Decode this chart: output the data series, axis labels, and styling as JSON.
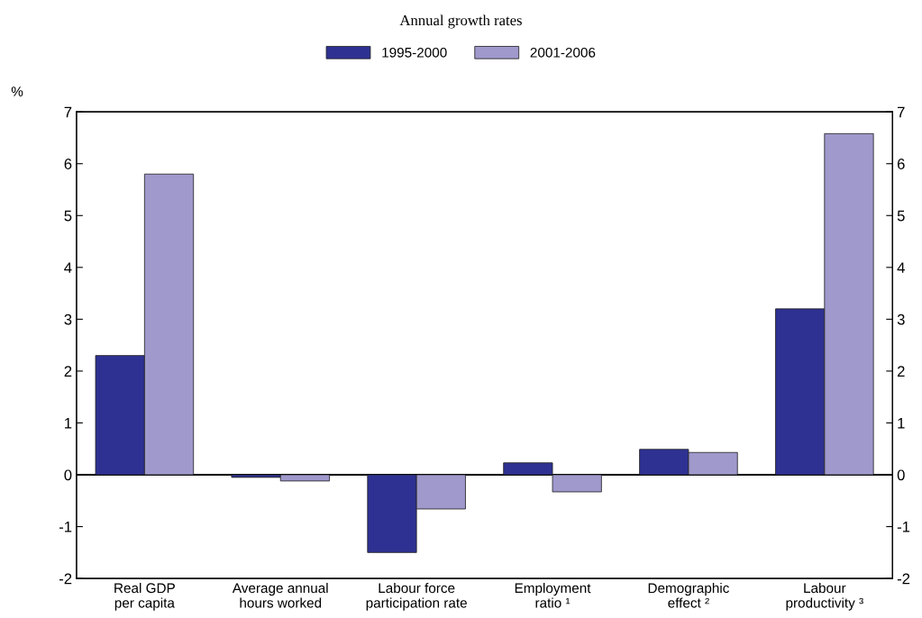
{
  "chart_data": {
    "type": "bar",
    "title": "Annual growth rates",
    "ylabel": "%",
    "categories": [
      "Real GDP\nper capita",
      "Average annual\nhours worked",
      "Labour force\nparticipation rate",
      "Employment\nratio ¹",
      "Demographic\neffect ²",
      "Labour\nproductivity ³"
    ],
    "series": [
      {
        "name": "1995-2000",
        "color": "#2e3192",
        "values": [
          2.3,
          -0.05,
          -1.5,
          0.23,
          0.49,
          3.2
        ]
      },
      {
        "name": "2001-2006",
        "color": "#9f99cc",
        "values": [
          5.8,
          -0.12,
          -0.66,
          -0.33,
          0.43,
          6.58
        ]
      }
    ],
    "ylim": [
      -2,
      7
    ],
    "yticks": [
      -2,
      -1,
      0,
      1,
      2,
      3,
      4,
      5,
      6,
      7
    ],
    "y2lim": [
      -2,
      7
    ],
    "y2ticks": [
      -2,
      -1,
      0,
      1,
      2,
      3,
      4,
      5,
      6,
      7
    ],
    "ref_lines": [
      {
        "axis": "y",
        "value": 0,
        "color": "#000000"
      }
    ],
    "legend": "top",
    "grid": false
  }
}
